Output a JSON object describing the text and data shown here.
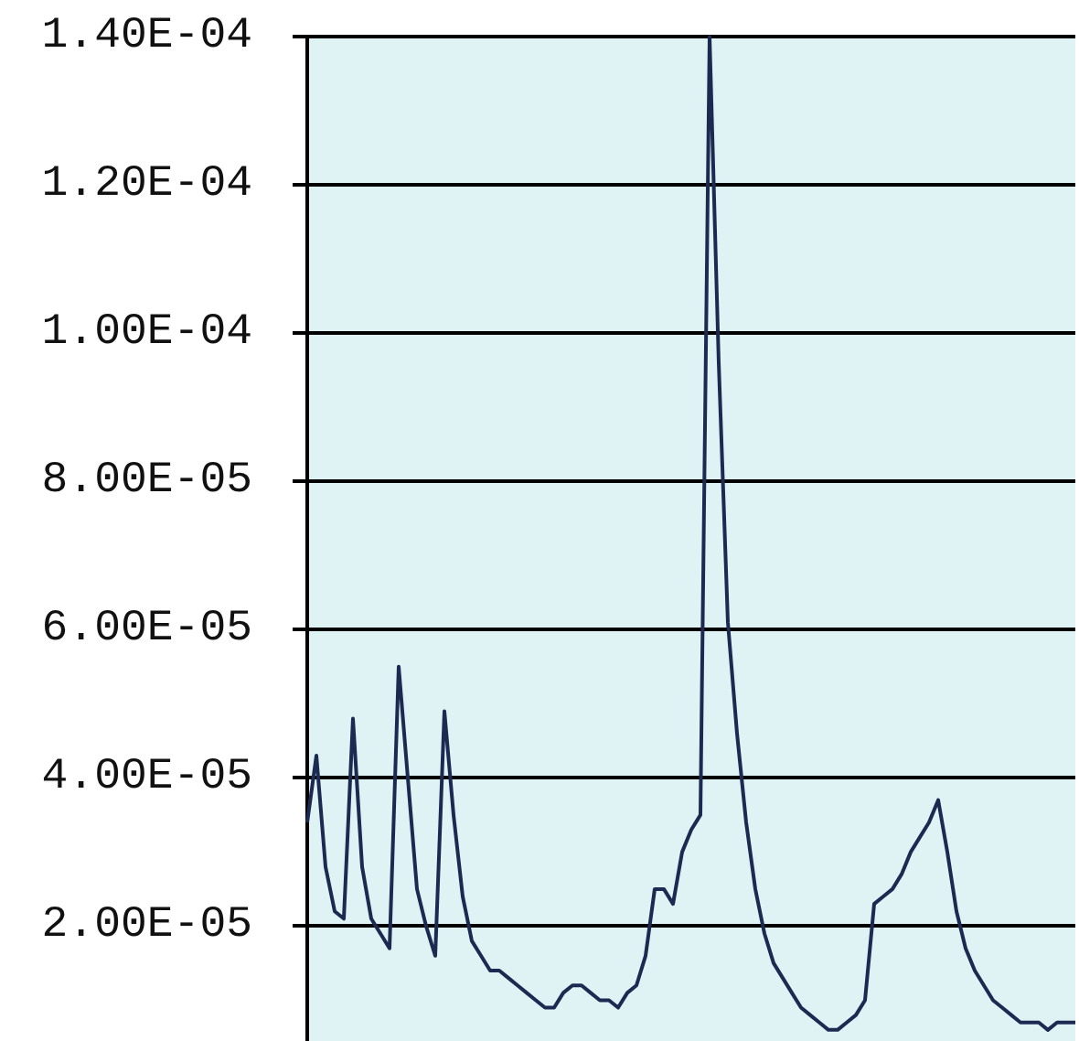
{
  "chart_data": {
    "type": "line",
    "categories": [
      null,
      null,
      null,
      null,
      null,
      null,
      null,
      null,
      null,
      null,
      null,
      null,
      null,
      null,
      null,
      null,
      null,
      null,
      null,
      null,
      null,
      null,
      null,
      null,
      null,
      null,
      null,
      null,
      null,
      null,
      null,
      null,
      null,
      null,
      null,
      null,
      null,
      null,
      null,
      null,
      null,
      null,
      null,
      null,
      null,
      null,
      null,
      null,
      null,
      null,
      null,
      null,
      null,
      null,
      null,
      null,
      null,
      null,
      null,
      null,
      null,
      null,
      null,
      null,
      null,
      null,
      null,
      null,
      null,
      null,
      null,
      null,
      null,
      null,
      null,
      null,
      null,
      null,
      null,
      null,
      null,
      null,
      null,
      null,
      null
    ],
    "series": [
      {
        "color": "#1c2a52",
        "values": [
          3.4e-05,
          4.3e-05,
          2.8e-05,
          2.2e-05,
          2.1e-05,
          4.8e-05,
          2.8e-05,
          2.1e-05,
          1.9e-05,
          1.7e-05,
          5.5e-05,
          4e-05,
          2.5e-05,
          2e-05,
          1.6e-05,
          4.9e-05,
          3.5e-05,
          2.4e-05,
          1.8e-05,
          1.6e-05,
          1.4e-05,
          1.4e-05,
          1.3e-05,
          1.2e-05,
          1.1e-05,
          1e-05,
          9e-06,
          9e-06,
          1.1e-05,
          1.2e-05,
          1.2e-05,
          1.1e-05,
          1e-05,
          1e-05,
          9e-06,
          1.1e-05,
          1.2e-05,
          1.6e-05,
          2.5e-05,
          2.5e-05,
          2.3e-05,
          3e-05,
          3.3e-05,
          3.5e-05,
          0.00014,
          9.6e-05,
          6.1e-05,
          4.6e-05,
          3.4e-05,
          2.5e-05,
          1.9e-05,
          1.5e-05,
          1.3e-05,
          1.1e-05,
          9e-06,
          8e-06,
          7e-06,
          6e-06,
          6e-06,
          7e-06,
          8e-06,
          1e-05,
          2.3e-05,
          2.4e-05,
          2.5e-05,
          2.7e-05,
          3e-05,
          3.2e-05,
          3.4e-05,
          3.7e-05,
          3e-05,
          2.2e-05,
          1.7e-05,
          1.4e-05,
          1.2e-05,
          1e-05,
          9e-06,
          8e-06,
          7e-06,
          7e-06,
          7e-06,
          6e-06,
          7e-06,
          7e-06,
          7e-06
        ]
      }
    ],
    "ylim": [
      4.5e-06,
      0.00014
    ],
    "yticks": [
      {
        "value": 2e-05,
        "label": "2.00E-05"
      },
      {
        "value": 4e-05,
        "label": "4.00E-05"
      },
      {
        "value": 6e-05,
        "label": "6.00E-05"
      },
      {
        "value": 8e-05,
        "label": "8.00E-05"
      },
      {
        "value": 0.0001,
        "label": "1.00E-04"
      },
      {
        "value": 0.00012,
        "label": "1.20E-04"
      },
      {
        "value": 0.00014,
        "label": "1.40E-04"
      }
    ],
    "grid": "y",
    "line_style": "solid",
    "tick_labels": "y"
  }
}
